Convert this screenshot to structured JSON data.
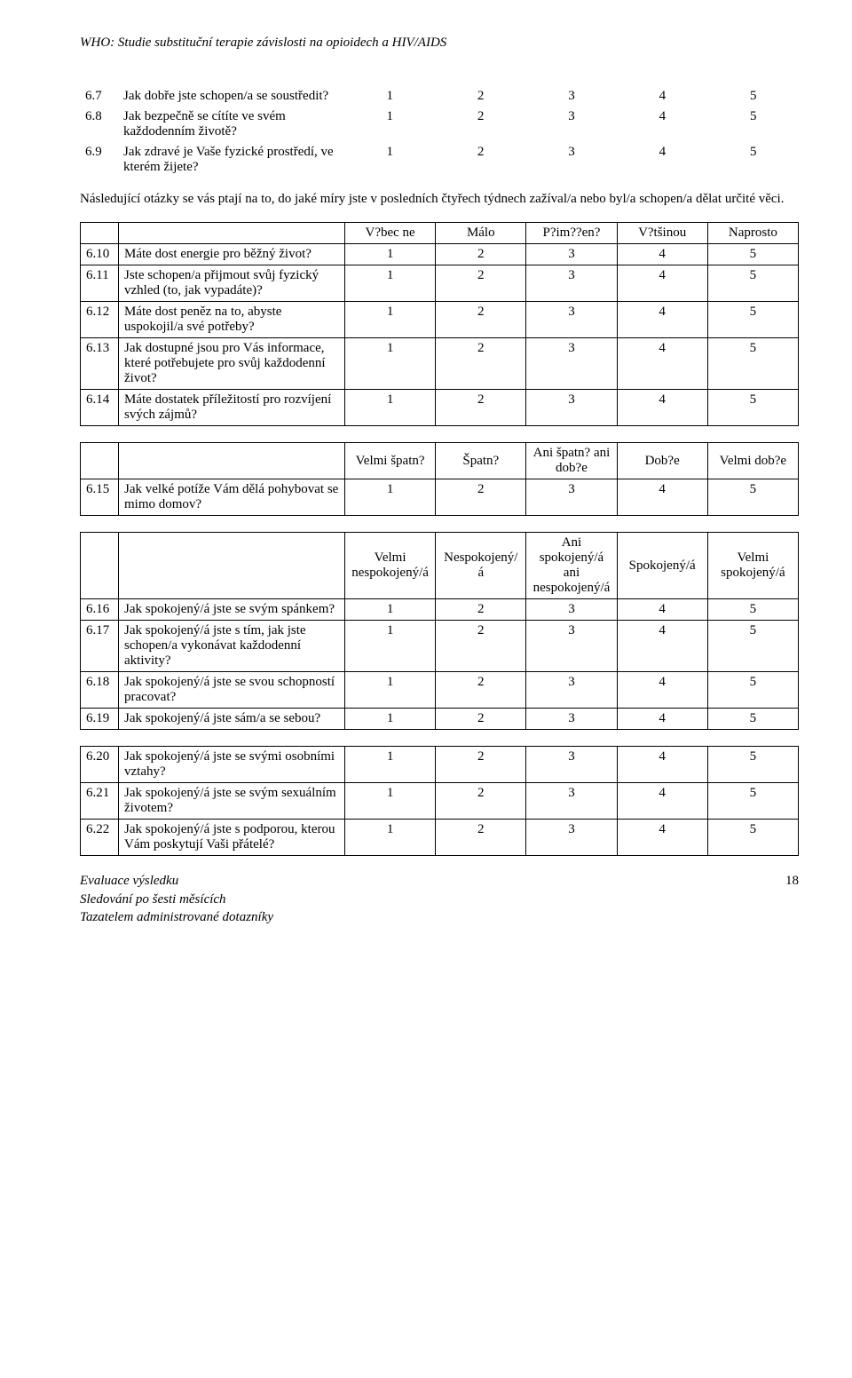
{
  "header": "WHO: Studie substituční terapie závislosti na opioidech a HIV/AIDS",
  "t1": {
    "rows": [
      {
        "n": "6.7",
        "q": "Jak dobře jste schopen/a se soustředit?",
        "v": [
          "1",
          "2",
          "3",
          "4",
          "5"
        ]
      },
      {
        "n": "6.8",
        "q": "Jak bezpečně se cítíte ve svém každodenním životě?",
        "v": [
          "1",
          "2",
          "3",
          "4",
          "5"
        ]
      },
      {
        "n": "6.9",
        "q": "Jak zdravé je Vaše fyzické prostředí, ve kterém žijete?",
        "v": [
          "1",
          "2",
          "3",
          "4",
          "5"
        ]
      }
    ]
  },
  "para1": "Následující otázky se vás ptají na to, do jaké míry jste v posledních čtyřech týdnech zažíval/a nebo byl/a schopen/a dělat určité věci.",
  "t2": {
    "head": [
      "V?bec ne",
      "Málo",
      "P?im??en?",
      "V?tšinou",
      "Naprosto"
    ],
    "rows": [
      {
        "n": "6.10",
        "q": "Máte dost energie pro běžný život?",
        "v": [
          "1",
          "2",
          "3",
          "4",
          "5"
        ]
      },
      {
        "n": "6.11",
        "q": "Jste schopen/a přijmout svůj fyzický vzhled (to, jak vypadáte)?",
        "v": [
          "1",
          "2",
          "3",
          "4",
          "5"
        ]
      },
      {
        "n": "6.12",
        "q": "Máte dost peněz na to, abyste uspokojil/a své potřeby?",
        "v": [
          "1",
          "2",
          "3",
          "4",
          "5"
        ]
      },
      {
        "n": "6.13",
        "q": "Jak dostupné jsou pro Vás informace, které potřebujete pro svůj každodenní život?",
        "v": [
          "1",
          "2",
          "3",
          "4",
          "5"
        ]
      },
      {
        "n": "6.14",
        "q": "Máte dostatek příležitostí pro rozvíjení svých zájmů?",
        "v": [
          "1",
          "2",
          "3",
          "4",
          "5"
        ]
      }
    ]
  },
  "t3": {
    "head": [
      "Velmi špatn?",
      "Špatn?",
      "Ani špatn? ani dob?e",
      "Dob?e",
      "Velmi dob?e"
    ],
    "rows": [
      {
        "n": "6.15",
        "q": "Jak velké potíže Vám dělá pohybovat se mimo domov?",
        "v": [
          "1",
          "2",
          "3",
          "4",
          "5"
        ]
      }
    ]
  },
  "t4": {
    "head": [
      "Velmi nespokojený/á",
      "Nespokojený/á",
      "Ani spokojený/á ani nespokojený/á",
      "Spokojený/á",
      "Velmi spokojený/á"
    ],
    "rows": [
      {
        "n": "6.16",
        "q": "Jak spokojený/á jste se svým spánkem?",
        "v": [
          "1",
          "2",
          "3",
          "4",
          "5"
        ]
      },
      {
        "n": "6.17",
        "q": "Jak spokojený/á jste s tím, jak jste schopen/a vykonávat každodenní aktivity?",
        "v": [
          "1",
          "2",
          "3",
          "4",
          "5"
        ]
      },
      {
        "n": "6.18",
        "q": "Jak spokojený/á jste se svou schopností pracovat?",
        "v": [
          "1",
          "2",
          "3",
          "4",
          "5"
        ]
      },
      {
        "n": "6.19",
        "q": "Jak spokojený/á jste sám/a se sebou?",
        "v": [
          "1",
          "2",
          "3",
          "4",
          "5"
        ]
      }
    ]
  },
  "t5": {
    "rows": [
      {
        "n": "6.20",
        "q": "Jak spokojený/á jste se svými osobními vztahy?",
        "v": [
          "1",
          "2",
          "3",
          "4",
          "5"
        ]
      },
      {
        "n": "6.21",
        "q": "Jak spokojený/á jste se svým sexuálním životem?",
        "v": [
          "1",
          "2",
          "3",
          "4",
          "5"
        ]
      },
      {
        "n": "6.22",
        "q": "Jak spokojený/á jste s podporou, kterou Vám poskytují Vaši přátelé?",
        "v": [
          "1",
          "2",
          "3",
          "4",
          "5"
        ]
      }
    ]
  },
  "footer": {
    "l1": "Evaluace výsledku",
    "l2": "Sledování po šesti měsících",
    "l3": "Tazatelem administrované dotazníky",
    "page": "18"
  }
}
